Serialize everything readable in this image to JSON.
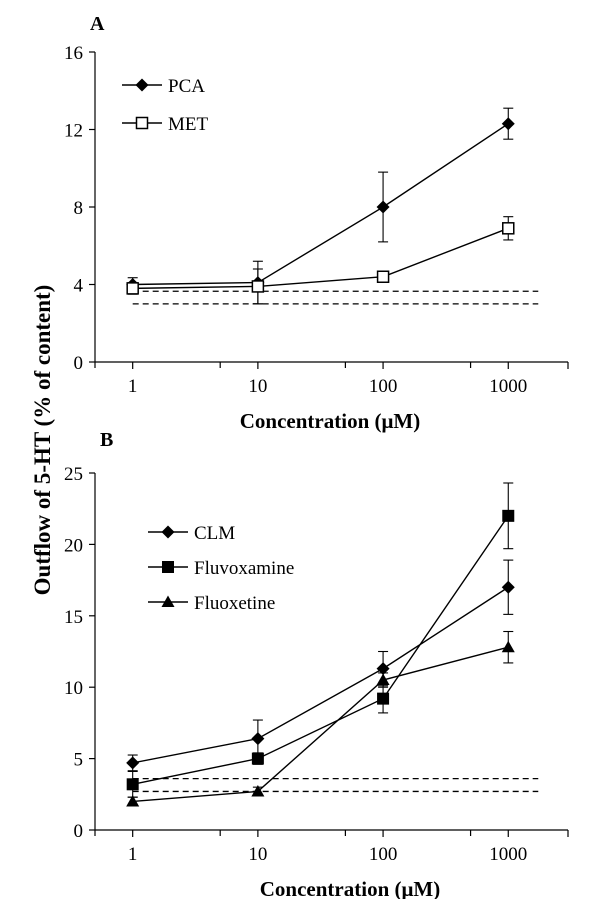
{
  "figure": {
    "shared_ylabel": "Outflow of 5-HT (% of content)"
  },
  "chart_data": [
    {
      "type": "line",
      "panel_label": "A",
      "xlabel": "Concentration (μM)",
      "ylabel": "Outflow of 5-HT (% of content)",
      "x_scale": "log",
      "x": [
        1,
        10,
        100,
        1000
      ],
      "x_tick_labels": [
        "1",
        "10",
        "100",
        "1000"
      ],
      "xlim": [
        0.5,
        3000
      ],
      "ylim": [
        0,
        16
      ],
      "y_ticks": [
        0,
        4,
        8,
        12,
        16
      ],
      "legend_placement": "top-left",
      "grid": false,
      "series": [
        {
          "name": "PCA",
          "marker": "diamond-filled",
          "values": [
            4.0,
            4.1,
            8.0,
            12.3
          ],
          "errors": [
            0.35,
            1.1,
            1.8,
            0.8
          ]
        },
        {
          "name": "MET",
          "marker": "square-open",
          "values": [
            3.8,
            3.9,
            4.4,
            6.9
          ],
          "errors": [
            0.3,
            0.9,
            0.25,
            0.6
          ]
        }
      ],
      "baselines": [
        3.65,
        3.0
      ]
    },
    {
      "type": "line",
      "panel_label": "B",
      "xlabel": "Concentration (μM)",
      "ylabel": "Outflow of 5-HT (% of content)",
      "x_scale": "log",
      "x": [
        1,
        10,
        100,
        1000
      ],
      "x_tick_labels": [
        "1",
        "10",
        "100",
        "1000"
      ],
      "xlim": [
        0.5,
        3000
      ],
      "ylim": [
        0,
        25
      ],
      "y_ticks": [
        0,
        5,
        10,
        15,
        20,
        25
      ],
      "legend_placement": "left",
      "grid": false,
      "series": [
        {
          "name": "CLM",
          "marker": "diamond-filled",
          "values": [
            4.7,
            6.4,
            11.3,
            17.0
          ],
          "errors": [
            0.55,
            1.3,
            1.2,
            1.9
          ]
        },
        {
          "name": "Fluvoxamine",
          "marker": "square-filled",
          "values": [
            3.2,
            5.0,
            9.2,
            22.0
          ],
          "errors": [
            0.9,
            0.4,
            1.0,
            2.3
          ]
        },
        {
          "name": "Fluoxetine",
          "marker": "triangle-filled",
          "values": [
            2.0,
            2.7,
            10.5,
            12.8
          ],
          "errors": [
            0.3,
            0.3,
            0.5,
            1.1
          ]
        }
      ],
      "baselines": [
        3.6,
        2.7
      ]
    }
  ]
}
